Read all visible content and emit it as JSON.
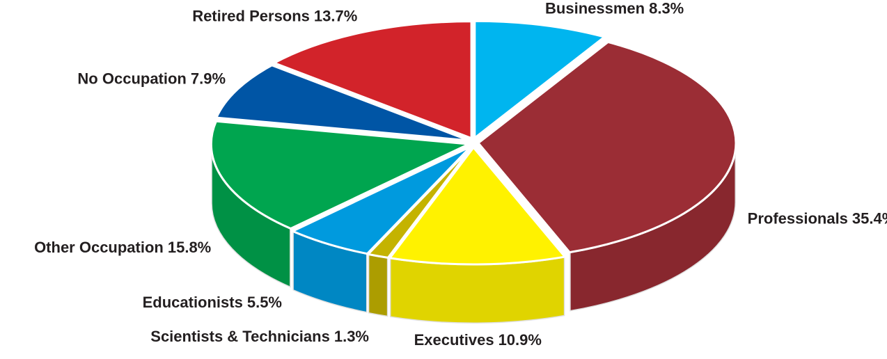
{
  "chart_data": {
    "type": "pie3d",
    "categories": [
      "Businessmen",
      "Professionals",
      "Executives",
      "Scientists & Technicians",
      "Educationists",
      "Other Occupation",
      "No Occupation",
      "Retired Persons"
    ],
    "values": [
      8.3,
      35.4,
      10.9,
      1.3,
      5.5,
      15.8,
      7.9,
      13.7
    ],
    "value_labels": [
      "8.3%",
      "35.4%",
      "10.9%",
      "1.3%",
      "5.5%",
      "15.8%",
      "7.9%",
      "13.7%"
    ],
    "colors": [
      "#00b5ef",
      "#9b2d35",
      "#fff200",
      "#c4b300",
      "#009ade",
      "#00a54f",
      "#0055a5",
      "#d2232a"
    ]
  }
}
